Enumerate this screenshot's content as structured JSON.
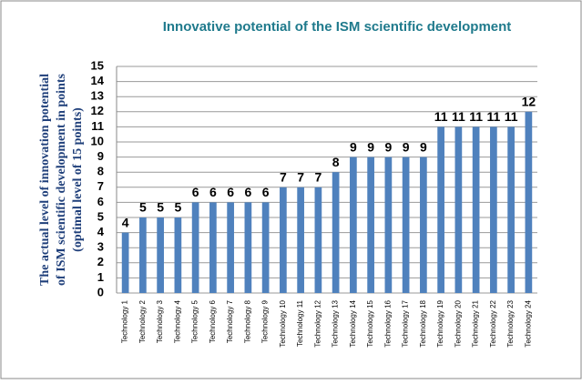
{
  "chart_data": {
    "type": "bar",
    "title": "Innovative potential of the ISM scientific development",
    "ylabel": [
      "The actual level of innovation potential",
      "of ISM scientific development in points",
      "(optimal level of 15 points)"
    ],
    "categories": [
      "Technology 1",
      "Technology 2",
      "Technology 3",
      "Technology 4",
      "Technology 5",
      "Technology 6",
      "Technology 7",
      "Technology 8",
      "Technology 9",
      "Technology 10",
      "Technology 11",
      "Technology 12",
      "Technology 13",
      "Technology 14",
      "Technology 15",
      "Technology 16",
      "Technology 17",
      "Technology 18",
      "Technology 19",
      "Technology 20",
      "Technology 21",
      "Technology 22",
      "Technology 23",
      "Technology 24"
    ],
    "values": [
      4,
      5,
      5,
      5,
      6,
      6,
      6,
      6,
      6,
      7,
      7,
      7,
      8,
      9,
      9,
      9,
      9,
      9,
      11,
      11,
      11,
      11,
      11,
      12
    ],
    "color": "#4f81bd",
    "ylim": [
      0,
      15
    ],
    "yticks": [
      0,
      1,
      2,
      3,
      4,
      5,
      6,
      7,
      8,
      9,
      10,
      11,
      12,
      13,
      14,
      15
    ],
    "grid": true
  }
}
